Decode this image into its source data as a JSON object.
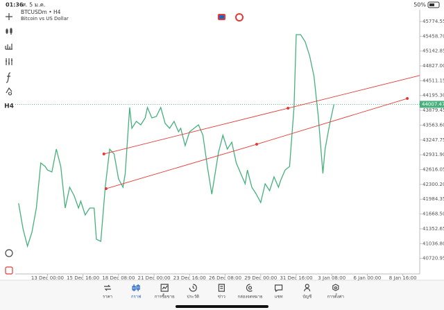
{
  "status_bar": {
    "time": "01:36",
    "date": "ศ. 5 ม.ค.",
    "battery": "50%"
  },
  "toolbar": {
    "timeframe": "H4"
  },
  "chart_data": {
    "type": "line",
    "title": "BTCUSDm • H4",
    "subtitle": "Bitcoin vs US Dollar",
    "color": "#45b07c",
    "x": [
      0,
      2,
      4,
      6,
      8,
      10,
      12,
      13,
      15,
      17,
      19,
      21,
      23,
      25,
      27,
      28,
      30,
      32,
      34,
      35,
      37,
      39,
      41,
      43,
      45,
      47,
      48,
      50,
      51,
      53,
      55,
      57,
      58,
      60,
      62,
      64,
      66,
      68,
      70,
      72,
      73,
      75,
      77,
      79,
      81,
      83,
      85,
      87,
      88,
      90,
      92,
      94,
      96,
      98,
      100,
      102,
      103,
      105,
      107,
      109,
      111,
      113,
      115,
      117,
      118,
      120,
      122,
      124,
      125,
      127,
      129,
      131,
      133,
      135,
      137,
      138,
      140,
      142
    ],
    "values": [
      41898,
      41351,
      40981,
      41277,
      41795,
      42756,
      42682,
      42608,
      42564,
      43052,
      42682,
      41795,
      42239,
      42061,
      41795,
      41943,
      41647,
      41795,
      41795,
      41129,
      41085,
      42239,
      43052,
      42949,
      42416,
      42239,
      42534,
      43940,
      43496,
      43644,
      43570,
      43718,
      43940,
      43718,
      43748,
      43940,
      43600,
      43496,
      43644,
      43422,
      43496,
      43126,
      43422,
      43496,
      43570,
      43348,
      42682,
      42091,
      42387,
      42978,
      43348,
      43052,
      43200,
      42756,
      42534,
      42313,
      42608,
      42239,
      42091,
      41913,
      42313,
      42165,
      42461,
      42239,
      42387,
      42608,
      42682,
      43940,
      45493,
      45493,
      45345,
      45049,
      44606,
      43718,
      42534,
      43052,
      43570,
      44007.47
    ],
    "xlim": [
      -1.5,
      180.6
    ],
    "ylim": [
      40390,
      45937
    ],
    "xticks": [
      {
        "value": 13,
        "label": "13 Dec 00:00"
      },
      {
        "value": 29,
        "label": "15 Dec 16:00"
      },
      {
        "value": 45,
        "label": "18 Dec 08:00"
      },
      {
        "value": 61,
        "label": "21 Dec 00:00"
      },
      {
        "value": 77,
        "label": "23 Dec 16:00"
      },
      {
        "value": 93,
        "label": "26 Dec 08:00"
      },
      {
        "value": 109,
        "label": "29 Dec 00:00"
      },
      {
        "value": 125,
        "label": "31 Dec 16:00"
      },
      {
        "value": 141,
        "label": "3 Jan 08:00"
      },
      {
        "value": 157,
        "label": "6 Jan 00:00"
      },
      {
        "value": 173,
        "label": "8 Jan 16:00"
      }
    ],
    "yticks": [
      45774.55,
      {
        "value": 45458.7,
        "label": "45458.70"
      },
      45142.85,
      {
        "value": 44827,
        "label": "44827.00"
      },
      44511.15,
      {
        "value": 44195.3,
        "label": "44195.30"
      },
      43879.45,
      {
        "value": 43563.6,
        "label": "43563.60"
      },
      43247.75,
      {
        "value": 42931.9,
        "label": "42931.90"
      },
      42616.05,
      {
        "value": 42300.2,
        "label": "42300.20"
      },
      41984.35,
      {
        "value": 41668.5,
        "label": "41668.50"
      },
      41352.65,
      {
        "value": 41036.8,
        "label": "41036.80"
      },
      40720.95
    ],
    "current_price": 44007.47,
    "trendlines": [
      {
        "x": [
          38.4,
          121.3
        ],
        "y": [
          42949,
          43925
        ],
        "ray": true,
        "color": "#e53935"
      },
      {
        "x": [
          39.4,
          107.2,
          175
        ],
        "y": [
          42209,
          43156,
          44132
        ],
        "ray": false,
        "color": "#e53935"
      }
    ]
  },
  "tabs": [
    {
      "label": "ราคา"
    },
    {
      "label": "กราฟ"
    },
    {
      "label": "การซื้อขาย"
    },
    {
      "label": "ประวัติ"
    },
    {
      "label": "ข่าว"
    },
    {
      "label": "กล่องจดหมาย"
    },
    {
      "label": "แชท"
    },
    {
      "label": "บัญชี"
    },
    {
      "label": "การตั้งค่า"
    }
  ],
  "active_tab": 1
}
